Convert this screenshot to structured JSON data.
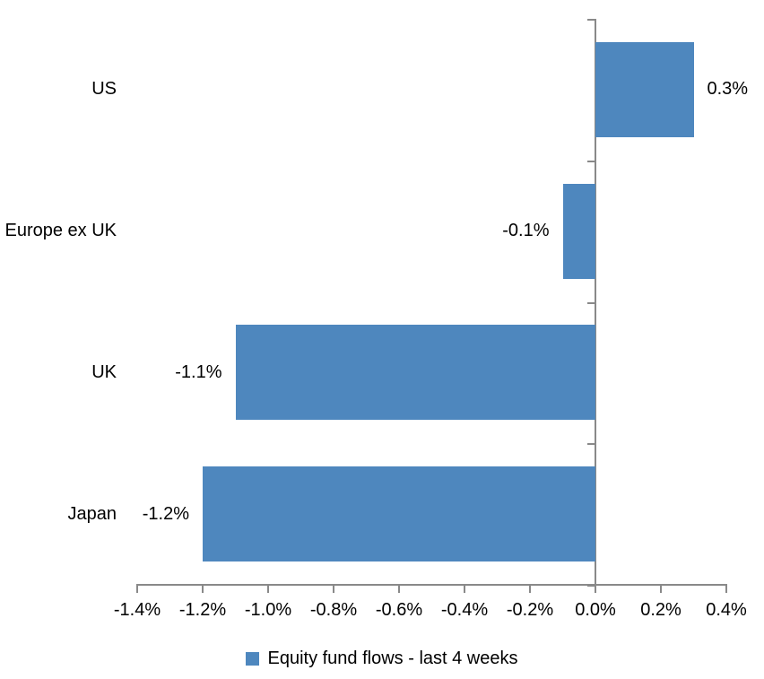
{
  "chart_data": {
    "type": "bar",
    "orientation": "horizontal",
    "categories": [
      "US",
      "Europe ex UK",
      "UK",
      "Japan"
    ],
    "series": [
      {
        "name": "Equity fund flows - last 4 weeks",
        "values": [
          0.3,
          -0.1,
          -1.1,
          -1.2
        ]
      }
    ],
    "value_labels": [
      "0.3%",
      "-0.1%",
      "-1.1%",
      "-1.2%"
    ],
    "x_tick_values": [
      -1.4,
      -1.2,
      -1.0,
      -0.8,
      -0.6,
      -0.4,
      -0.2,
      0.0,
      0.2,
      0.4
    ],
    "x_tick_labels": [
      "-1.4%",
      "-1.2%",
      "-1.0%",
      "-0.8%",
      "-0.6%",
      "-0.4%",
      "-0.2%",
      "0.0%",
      "0.2%",
      "0.4%"
    ],
    "xlim": [
      -1.4,
      0.4
    ],
    "grid": false,
    "data_labels": "outside-end",
    "legend_position": "bottom"
  },
  "legend": {
    "label": "Equity fund flows - last 4 weeks"
  },
  "colors": {
    "bar": "#4E87BE",
    "axis": "#898989",
    "text": "#000000",
    "background": "#FFFFFF"
  }
}
